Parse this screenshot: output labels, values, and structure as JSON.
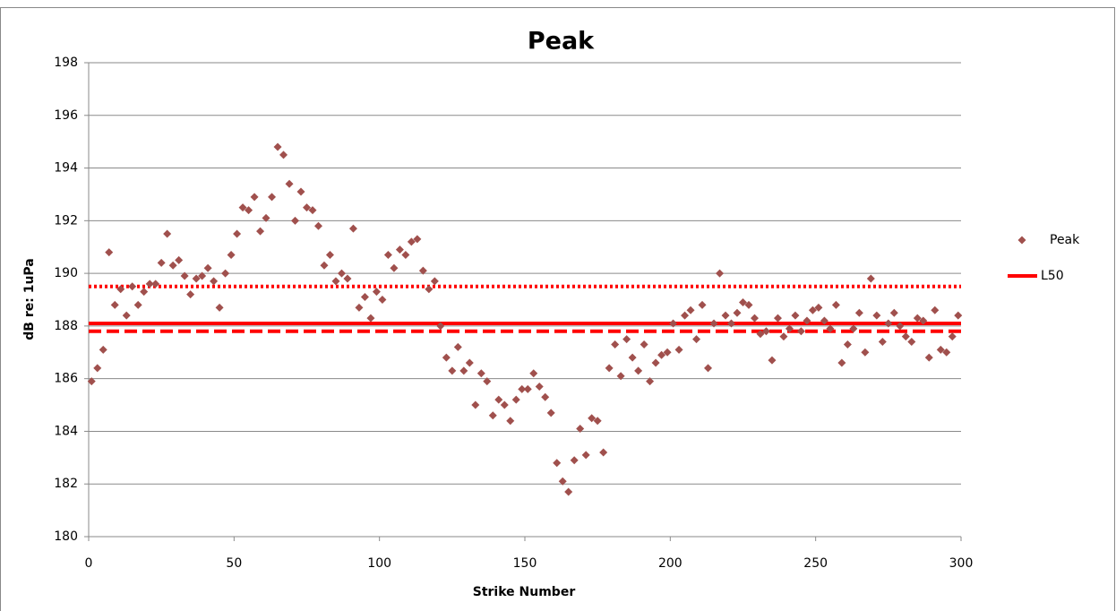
{
  "chart_data": {
    "type": "scatter",
    "title": "Peak",
    "x_label": "Strike Number",
    "y_label": "dB re: 1uPa",
    "xlim": [
      0,
      300
    ],
    "xticks": [
      0,
      50,
      100,
      150,
      200,
      250,
      300
    ],
    "ylim": [
      180,
      198
    ],
    "yticks": [
      180,
      182,
      184,
      186,
      188,
      190,
      192,
      194,
      196,
      198
    ],
    "grid": true,
    "series": [
      {
        "name": "Peak",
        "color": "#a0504d",
        "x": [
          1,
          3,
          5,
          7,
          9,
          11,
          13,
          15,
          17,
          19,
          21,
          23,
          25,
          27,
          29,
          31,
          33,
          35,
          37,
          39,
          41,
          43,
          45,
          47,
          49,
          51,
          53,
          55,
          57,
          59,
          61,
          63,
          65,
          67,
          69,
          71,
          73,
          75,
          77,
          79,
          81,
          83,
          85,
          87,
          89,
          91,
          93,
          95,
          97,
          99,
          101,
          103,
          105,
          107,
          109,
          111,
          113,
          115,
          117,
          119,
          121,
          123,
          125,
          127,
          129,
          131,
          133,
          135,
          137,
          139,
          141,
          143,
          145,
          147,
          149,
          151,
          153,
          155,
          157,
          159,
          161,
          163,
          165,
          167,
          169,
          171,
          173,
          175,
          177,
          179,
          181,
          183,
          185,
          187,
          189,
          191,
          193,
          195,
          197,
          199,
          201,
          203,
          205,
          207,
          209,
          211,
          213,
          215,
          217,
          219,
          221,
          223,
          225,
          227,
          229,
          231,
          233,
          235,
          237,
          239,
          241,
          243,
          245,
          247,
          249,
          251,
          253,
          255,
          257,
          259,
          261,
          263,
          265,
          267,
          269,
          271,
          273,
          275,
          277,
          279,
          281,
          283,
          285,
          287,
          289,
          291,
          293,
          295,
          297,
          299
        ],
        "values": [
          185.9,
          186.4,
          187.1,
          190.8,
          188.8,
          189.4,
          188.4,
          189.5,
          188.8,
          189.3,
          189.6,
          189.6,
          190.4,
          191.5,
          190.3,
          190.5,
          189.9,
          189.2,
          189.8,
          189.9,
          190.2,
          189.7,
          188.7,
          190.0,
          190.7,
          191.5,
          192.5,
          192.4,
          192.9,
          191.6,
          192.1,
          192.9,
          194.8,
          194.5,
          193.4,
          192.0,
          193.1,
          192.5,
          192.4,
          191.8,
          190.3,
          190.7,
          189.7,
          190.0,
          189.8,
          191.7,
          188.7,
          189.1,
          188.3,
          189.3,
          189.0,
          190.7,
          190.2,
          190.9,
          190.7,
          191.2,
          191.3,
          190.1,
          189.4,
          189.7,
          188.0,
          186.8,
          186.3,
          187.2,
          186.3,
          186.6,
          185.0,
          186.2,
          185.9,
          184.6,
          185.2,
          185.0,
          184.4,
          185.2,
          185.6,
          185.6,
          186.2,
          185.7,
          185.3,
          184.7,
          182.8,
          182.1,
          181.7,
          182.9,
          184.1,
          183.1,
          184.5,
          184.4,
          183.2,
          186.4,
          187.3,
          186.1,
          187.5,
          186.8,
          186.3,
          187.3,
          185.9,
          186.6,
          186.9,
          187.0,
          188.1,
          187.1,
          188.4,
          188.6,
          187.5,
          188.8,
          186.4,
          188.1,
          190.0,
          188.4,
          188.1,
          188.5,
          188.9,
          188.8,
          188.3,
          187.7,
          187.8,
          186.7,
          188.3,
          187.6,
          187.9,
          188.4,
          187.8,
          188.2,
          188.6,
          188.7,
          188.2,
          187.9,
          188.8,
          186.6,
          187.3,
          187.9,
          188.5,
          187.0,
          189.8,
          188.4,
          187.4,
          188.1,
          188.5,
          188.0,
          187.6,
          187.4,
          188.3,
          188.2,
          186.8,
          188.6,
          187.1,
          187.0,
          187.6,
          188.4
        ]
      }
    ],
    "hlines": [
      {
        "name": "L50",
        "value": 188.1,
        "color": "#ff0000",
        "style": "solid"
      },
      {
        "value": 187.8,
        "color": "#ff0000",
        "style": "dashed"
      },
      {
        "value": 189.5,
        "color": "#ff0000",
        "style": "dotted"
      }
    ]
  }
}
